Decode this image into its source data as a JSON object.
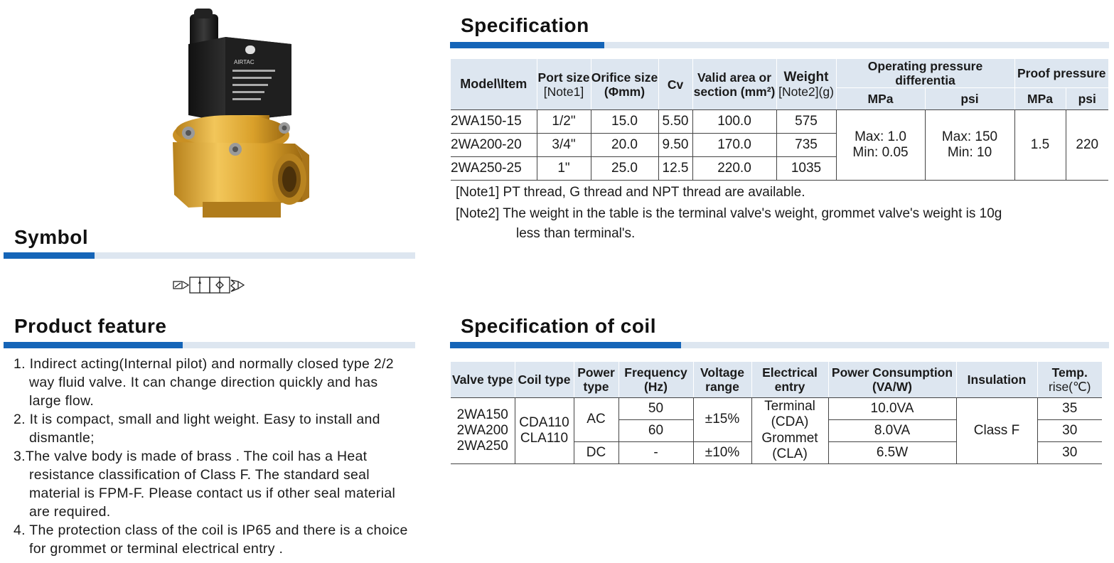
{
  "sections": {
    "specification": "Specification",
    "symbol": "Symbol",
    "feature": "Product feature",
    "coil": "Specification of coil"
  },
  "valve_label": {
    "brand": "AIRTAC"
  },
  "spec_table": {
    "headers": {
      "model": "Model\\Item",
      "port_a": "Port size",
      "port_b": "[Note1]",
      "orifice_a": "Orifice size",
      "orifice_b": "(Φmm)",
      "cv": "Cv",
      "area_a": "Valid area or",
      "area_b": "section (mm²)",
      "weight_a": "Weight",
      "weight_b": "[Note2](g)",
      "opd": "Operating pressure differentia",
      "proof": "Proof pressure",
      "mpa": "MPa",
      "psi": "psi",
      "mpa2": "MPa",
      "psi2": "psi"
    },
    "rows": [
      {
        "model": "2WA150-15",
        "port": "1/2\"",
        "orifice": "15.0",
        "cv": "5.50",
        "area": "100.0",
        "weight": "575"
      },
      {
        "model": "2WA200-20",
        "port": "3/4\"",
        "orifice": "20.0",
        "cv": "9.50",
        "area": "170.0",
        "weight": "735"
      },
      {
        "model": "2WA250-25",
        "port": "1\"",
        "orifice": "25.0",
        "cv": "12.5",
        "area": "220.0",
        "weight": "1035"
      }
    ],
    "merged": {
      "mpa_max": "Max: 1.0",
      "mpa_min": "Min: 0.05",
      "psi_max": "Max: 150",
      "psi_min": "Min: 10",
      "proof_mpa": "1.5",
      "proof_psi": "220"
    }
  },
  "notes": {
    "note1_tag": "[Note1]",
    "note1": "PT thread, G thread and NPT thread are available.",
    "note2_tag": "[Note2]",
    "note2_a": "The weight in the table is the terminal valve's weight, grommet valve's weight is 10g",
    "note2_b": "less than terminal's."
  },
  "features": [
    "1. Indirect acting(Internal pilot) and normally closed type 2/2 way fluid valve. It can change direction quickly and has large flow.",
    "2. It is compact, small and light weight. Easy to install and dismantle;",
    "3.The valve body is made of brass . The coil has a Heat resistance classification of Class F. The standard seal material is FPM-F. Please contact us if other seal material are required.",
    "4. The protection class of the coil is IP65 and there is a choice for grommet or terminal electrical entry ."
  ],
  "coil_table": {
    "headers": {
      "valve_type": "Valve type",
      "coil_type": "Coil type",
      "power_a": "Power",
      "power_b": "type",
      "freq_a": "Frequency",
      "freq_b": "(Hz)",
      "volt_a": "Voltage",
      "volt_b": "range",
      "entry_a": "Electrical",
      "entry_b": "entry",
      "cons_a": "Power Consumption",
      "cons_b": "(VA/W)",
      "insulation": "Insulation",
      "temp_a": "Temp.",
      "temp_b": "rise(℃)"
    },
    "valve_types": [
      "2WA150",
      "2WA200",
      "2WA250"
    ],
    "coil_types": [
      "CDA110",
      "CLA110"
    ],
    "power_ac": "AC",
    "power_dc": "DC",
    "freq": [
      "50",
      "60",
      "-"
    ],
    "volt_ac": "±15%",
    "volt_dc": "±10%",
    "entry": [
      "Terminal",
      "(CDA)",
      "Grommet",
      "(CLA)"
    ],
    "consumption": [
      "10.0VA",
      "8.0VA",
      "6.5W"
    ],
    "insulation": "Class F",
    "temp": [
      "35",
      "30",
      "30"
    ]
  },
  "colors": {
    "accent": "#1565b8",
    "rule": "#dde6f0",
    "header_bg": "#dde6f0",
    "brass": "#d9a52e",
    "coil": "#1c1c1c"
  }
}
